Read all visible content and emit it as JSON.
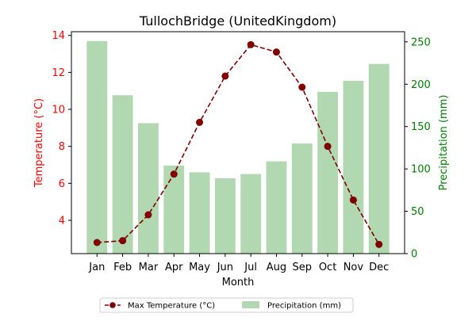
{
  "chart_data": {
    "type": "bar",
    "title": "TullochBridge (UnitedKingdom)",
    "xlabel": "Month",
    "categories": [
      "Jan",
      "Feb",
      "Mar",
      "Apr",
      "May",
      "Jun",
      "Jul",
      "Aug",
      "Sep",
      "Oct",
      "Nov",
      "Dec"
    ],
    "left_axis": {
      "label": "Temperature (°C)",
      "range": [
        2.2,
        14.2
      ],
      "ticks": [
        4,
        6,
        8,
        10,
        12,
        14
      ],
      "color": "#ff0000"
    },
    "right_axis": {
      "label": "Precipitation (mm)",
      "range": [
        0,
        262
      ],
      "ticks": [
        0,
        50,
        100,
        150,
        200,
        250
      ],
      "color": "#008000"
    },
    "series": [
      {
        "name": "Max Temperature (°C)",
        "type": "line",
        "axis": "left",
        "color": "#800000",
        "style": "dashed",
        "marker": "circle",
        "values": [
          2.8,
          2.9,
          4.3,
          6.5,
          9.3,
          11.8,
          13.5,
          13.1,
          11.2,
          8.0,
          5.1,
          2.7
        ]
      },
      {
        "name": "Precipitation (mm)",
        "type": "bar",
        "axis": "right",
        "color": "#b1d8b1",
        "values": [
          251,
          187,
          154,
          104,
          96,
          89,
          94,
          109,
          130,
          191,
          204,
          224
        ]
      }
    ],
    "legend_position": "bottom-center",
    "grid": false
  }
}
